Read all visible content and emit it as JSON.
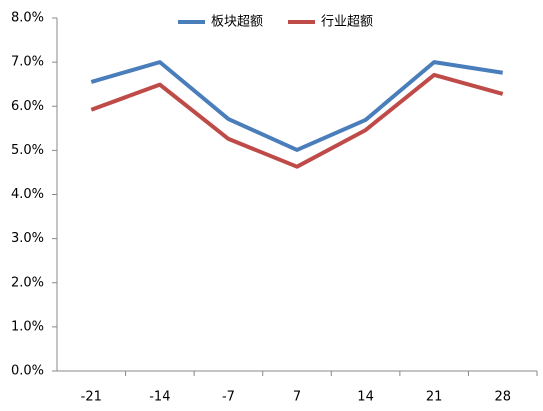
{
  "chart_data": {
    "type": "line",
    "categories": [
      "-21",
      "-14",
      "-7",
      "7",
      "14",
      "21",
      "28"
    ],
    "series": [
      {
        "name": "板块超额",
        "color": "#4a7ebb",
        "values": [
          6.55,
          7.0,
          5.71,
          5.01,
          5.69,
          7.0,
          6.76
        ]
      },
      {
        "name": "行业超额",
        "color": "#be4b48",
        "values": [
          5.92,
          6.49,
          5.26,
          4.63,
          5.46,
          6.71,
          6.28
        ]
      }
    ],
    "ylim": [
      0,
      8
    ],
    "yticks": [
      {
        "value": 0,
        "label": "0.0%"
      },
      {
        "value": 1,
        "label": "1.0%"
      },
      {
        "value": 2,
        "label": "2.0%"
      },
      {
        "value": 3,
        "label": "3.0%"
      },
      {
        "value": 4,
        "label": "4.0%"
      },
      {
        "value": 5,
        "label": "5.0%"
      },
      {
        "value": 6,
        "label": "6.0%"
      },
      {
        "value": 7,
        "label": "7.0%"
      },
      {
        "value": 8,
        "label": "8.0%"
      }
    ],
    "legend": "top"
  }
}
